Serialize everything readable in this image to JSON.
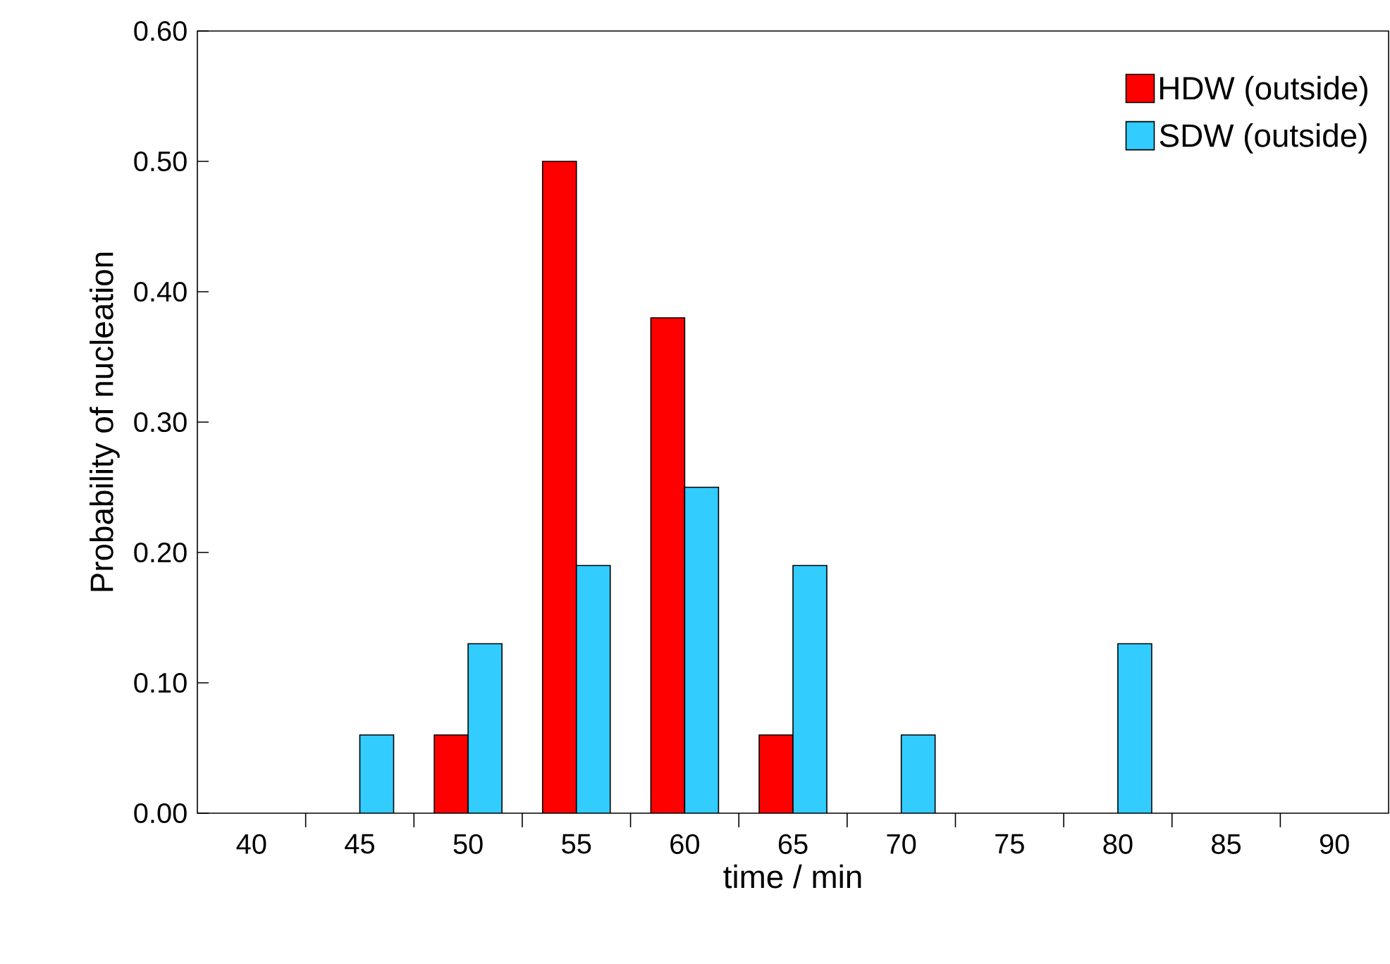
{
  "chart_data": {
    "type": "bar",
    "xlabel": "time / min",
    "ylabel": "Probability of nucleation",
    "categories": [
      "40",
      "45",
      "50",
      "55",
      "60",
      "65",
      "70",
      "75",
      "80",
      "85",
      "90"
    ],
    "series": [
      {
        "name": "HDW (outside)",
        "color": "#ff0000",
        "values": [
          null,
          null,
          0.06,
          0.5,
          0.38,
          0.06,
          null,
          null,
          null,
          null,
          null
        ]
      },
      {
        "name": "SDW (outside)",
        "color": "#33ccff",
        "values": [
          null,
          0.06,
          0.13,
          0.19,
          0.25,
          0.19,
          0.06,
          null,
          0.13,
          null,
          null
        ]
      }
    ],
    "ylim": [
      0,
      0.6
    ],
    "yticks": [
      {
        "value": 0,
        "label": "0.00"
      },
      {
        "value": 0.1,
        "label": "0.10"
      },
      {
        "value": 0.2,
        "label": "0.20"
      },
      {
        "value": 0.3,
        "label": "0.30"
      },
      {
        "value": 0.4,
        "label": "0.40"
      },
      {
        "value": 0.5,
        "label": "0.50"
      },
      {
        "value": 0.6,
        "label": "0.60"
      }
    ],
    "grid": false,
    "legend": "top right"
  }
}
